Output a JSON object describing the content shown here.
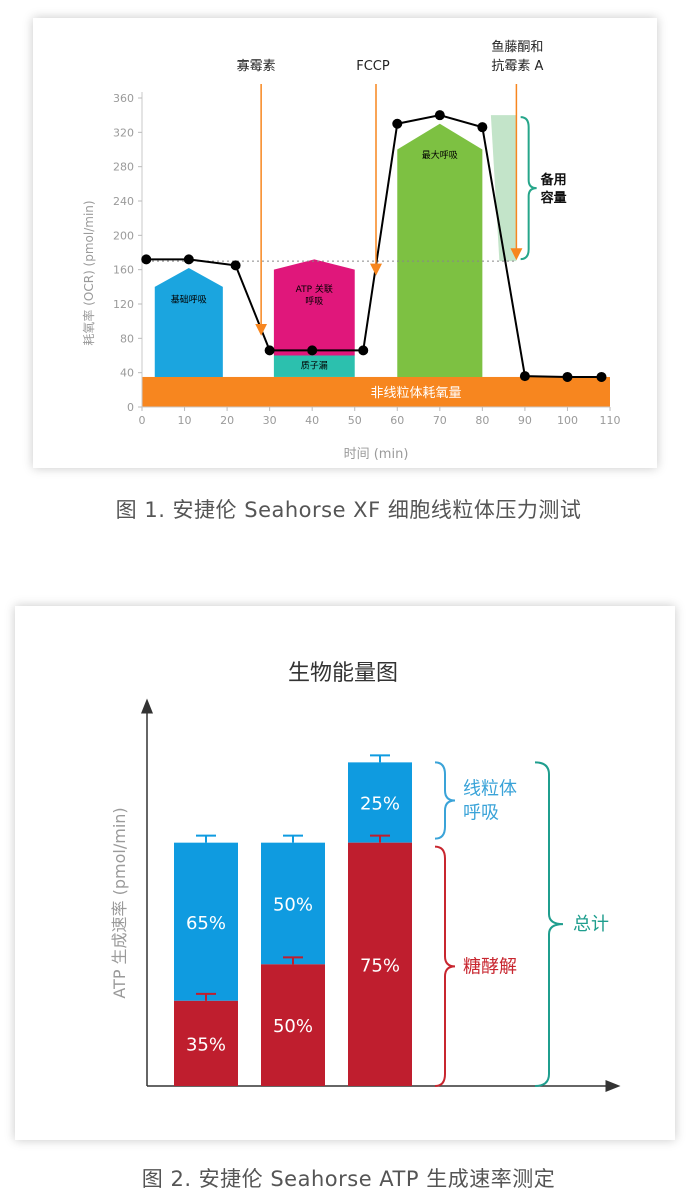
{
  "colors": {
    "orange": "#f7861f",
    "blue": "#1ba5df",
    "magenta": "#e0177b",
    "teal": "#2cc0ae",
    "green": "#7dc142",
    "light_green": "#b8dfbf",
    "bracket_green": "#26a68a",
    "line": "#000000",
    "glyco_red": "#bf1e2e",
    "mito_blue": "#0f9be0",
    "mito_label": "#3aa3d8",
    "glyco_label": "#c8262f",
    "total_teal": "#1f9e8e",
    "axis_text": "#9a9a9a"
  },
  "figure1": {
    "caption": "图 1. 安捷伦 Seahorse XF 细胞线粒体压力测试",
    "chart_data": {
      "type": "line",
      "xlabel": "时间 (min)",
      "ylabel": "耗氧率 (OCR) (pmol/min)",
      "xlim": [
        0,
        110
      ],
      "ylim": [
        0,
        360
      ],
      "x_ticks": [
        0,
        10,
        20,
        30,
        40,
        50,
        60,
        70,
        80,
        90,
        100,
        110
      ],
      "y_ticks": [
        0,
        40,
        80,
        120,
        160,
        200,
        240,
        280,
        320,
        360
      ],
      "grid": false,
      "series": [
        {
          "x": [
            1,
            11,
            22,
            30,
            40,
            52,
            60,
            70,
            80,
            90,
            100,
            108
          ],
          "y": [
            172,
            172,
            165,
            66,
            66,
            66,
            330,
            340,
            326,
            36,
            35,
            35
          ]
        }
      ],
      "reference_line_y": 170,
      "injections": [
        {
          "label": "寡霉素",
          "x": 28
        },
        {
          "label": "FCCP",
          "x": 55
        },
        {
          "label_line1": "鱼藤酮和",
          "label_line2": "抗霉素 A",
          "x": 88
        }
      ],
      "regions": {
        "non_mito": {
          "label": "非线粒体耗氧量",
          "from": 0,
          "to": 110,
          "y0": 0,
          "y1": 35
        },
        "basal": {
          "label": "基础呼吸",
          "x0": 3,
          "x1": 19,
          "y0": 35,
          "y1": 140,
          "peak": 162
        },
        "atp": {
          "label_line1": "ATP 关联",
          "label_line2": "呼吸",
          "x0": 31,
          "x1": 50,
          "y0": 60,
          "y1": 160,
          "peak": 172
        },
        "leak": {
          "label": "质子漏",
          "x0": 31,
          "x1": 50,
          "y0": 35,
          "y1": 60
        },
        "maximal": {
          "label": "最大呼吸",
          "x0": 60,
          "x1": 80,
          "y0": 35,
          "y1": 300,
          "peak": 330
        },
        "spare": {
          "label_line1": "备用",
          "label_line2": "容量",
          "y0": 170,
          "y1": 340
        }
      }
    }
  },
  "figure2": {
    "caption": "图 2. 安捷伦 Seahorse ATP 生成速率测定",
    "chart_data": {
      "type": "bar",
      "stacked": true,
      "title": "生物能量图",
      "ylabel": "ATP 生成速率 (pmol/min)",
      "bars": [
        {
          "glyco": 35,
          "mito": 65,
          "glyco_label": "35%",
          "mito_label": "65%"
        },
        {
          "glyco": 50,
          "mito": 50,
          "glyco_label": "50%",
          "mito_label": "50%"
        },
        {
          "glyco": 100,
          "mito": 33,
          "glyco_label": "75%",
          "mito_label": "25%"
        }
      ],
      "ylim": [
        0,
        150
      ],
      "legend": {
        "mito_line1": "线粒体",
        "mito_line2": "呼吸",
        "glyco": "糖酵解",
        "total": "总计"
      }
    }
  }
}
